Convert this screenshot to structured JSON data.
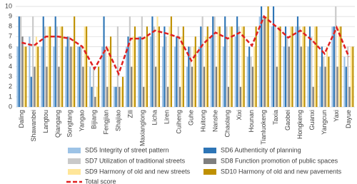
{
  "chart_data": {
    "type": "bar",
    "categories": [
      "Daling",
      "Shawanbei",
      "Langtou",
      "Qiangang",
      "Songtang",
      "Yangao",
      "Bijiang",
      "Fengjian",
      "Shajiao",
      "Zili",
      "Maxianglong",
      "Licha",
      "Liren",
      "Cuiheng",
      "Guhe",
      "Huitong",
      "Nanshe",
      "Chaolang",
      "Xixi",
      "Hounan",
      "Tianluokeng",
      "Taxia",
      "Gaobei",
      "Hongkeng",
      "Guanxi",
      "Yangcun",
      "Yaxi",
      "Dayue"
    ],
    "series": [
      {
        "name": "SD5 Integrity of street pattern",
        "color": "#9dc3e6",
        "values": [
          6,
          7,
          6,
          6,
          6,
          6,
          4,
          6,
          2,
          6,
          7,
          7,
          6,
          6,
          4,
          6,
          7,
          6,
          7,
          5,
          9,
          8,
          6,
          8,
          6,
          4,
          8,
          5
        ]
      },
      {
        "name": "SD6 Authenticity of planning",
        "color": "#2e75b6",
        "values": [
          9,
          3,
          9,
          9,
          7,
          6,
          2,
          9,
          2,
          7,
          7,
          9,
          8,
          7,
          6,
          8,
          9,
          9,
          9,
          6,
          10,
          10,
          8,
          9,
          8,
          6,
          8,
          4
        ]
      },
      {
        "name": "SD7 Utilization of traditional streets",
        "color": "#c9c9c9",
        "values": [
          9,
          9,
          8,
          8,
          7,
          6,
          4,
          6,
          8,
          9,
          9,
          8,
          7,
          8,
          6,
          9,
          9,
          8,
          8,
          5,
          9,
          8,
          7,
          8,
          7,
          5,
          10,
          6
        ]
      },
      {
        "name": "SD8 Function promotion of public spaces",
        "color": "#7f7f7f",
        "values": [
          7,
          4,
          4,
          4,
          6,
          4,
          1,
          2,
          2,
          4,
          2,
          4,
          2,
          2,
          4,
          4,
          4,
          2,
          2,
          4,
          9,
          4,
          6,
          6,
          2,
          4,
          4,
          2
        ]
      },
      {
        "name": "SD9 Harmony of old and new streets",
        "color": "#ffe699",
        "values": [
          6,
          7,
          8,
          8,
          6,
          8,
          2,
          6,
          2,
          7,
          7,
          9,
          8,
          7,
          6,
          7,
          8,
          8,
          8,
          6,
          9,
          8,
          8,
          8,
          8,
          6,
          8,
          6
        ]
      },
      {
        "name": "SD10 Harmony of old and new pavements",
        "color": "#bf9000",
        "values": [
          6,
          6,
          8,
          8,
          9,
          8,
          4,
          7,
          3,
          8,
          8,
          8,
          9,
          8,
          7,
          8,
          8,
          8,
          8,
          8,
          10,
          8,
          8,
          8,
          8,
          5,
          8,
          6
        ]
      },
      {
        "name": "Total score",
        "type": "line",
        "color": "#e02020",
        "values": [
          6.4,
          6.1,
          7.0,
          7.0,
          6.8,
          6.0,
          3.8,
          5.9,
          3.3,
          6.8,
          6.8,
          7.6,
          7.3,
          6.9,
          4.6,
          6.3,
          7.4,
          6.8,
          7.4,
          6.1,
          9.0,
          8.0,
          6.9,
          7.6,
          6.6,
          5.3,
          7.9,
          5.0
        ]
      }
    ],
    "ylim": [
      0,
      10
    ],
    "yticks": [
      0,
      1,
      2,
      3,
      4,
      5,
      6,
      7,
      8,
      9,
      10
    ],
    "grid": true
  }
}
